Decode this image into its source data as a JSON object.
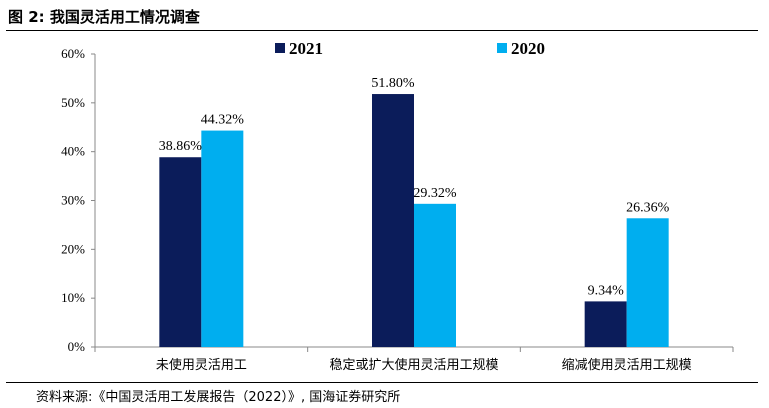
{
  "header": {
    "title": "图 2:  我国灵活用工情况调查"
  },
  "footer": {
    "source": "资料来源:《中国灵活用工发展报告（2022）》, 国海证券研究所"
  },
  "colors": {
    "series_2021": "#0b1c5a",
    "series_2020": "#00aeef",
    "axis": "#888888",
    "text": "#000000"
  },
  "chart_data": {
    "type": "bar",
    "title": "我国灵活用工情况调查",
    "categories": [
      "未使用灵活用工",
      "稳定或扩大使用灵活用工规模",
      "缩减使用灵活用工规模"
    ],
    "series": [
      {
        "name": "2021",
        "values": [
          38.86,
          51.8,
          9.34
        ],
        "labels": [
          "38.86%",
          "51.80%",
          "9.34%"
        ]
      },
      {
        "name": "2020",
        "values": [
          44.32,
          29.32,
          26.36
        ],
        "labels": [
          "44.32%",
          "29.32%",
          "26.36%"
        ]
      }
    ],
    "ylim": [
      0,
      60
    ],
    "yticks": [
      "0%",
      "10%",
      "20%",
      "30%",
      "40%",
      "50%",
      "60%"
    ],
    "xlabel": "",
    "ylabel": "",
    "legend_position": "top",
    "grid": false
  }
}
